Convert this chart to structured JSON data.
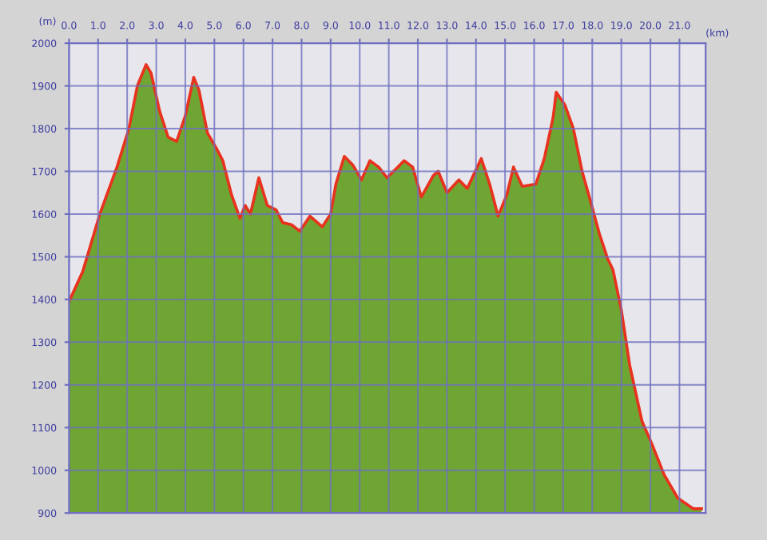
{
  "chart_data": {
    "type": "area",
    "xlabel": "(km)",
    "ylabel": "(m)",
    "x": [
      0,
      0.47,
      1.06,
      1.65,
      2.06,
      2.35,
      2.65,
      2.82,
      3.12,
      3.41,
      3.7,
      4.0,
      4.29,
      4.47,
      4.76,
      5.06,
      5.29,
      5.59,
      5.88,
      6.06,
      6.24,
      6.53,
      6.82,
      7.12,
      7.35,
      7.65,
      7.94,
      8.29,
      8.71,
      9.0,
      9.18,
      9.47,
      9.76,
      10.06,
      10.35,
      10.65,
      10.94,
      11.24,
      11.53,
      11.82,
      12.12,
      12.53,
      12.7,
      13.0,
      13.41,
      13.7,
      14.18,
      14.47,
      14.76,
      15.06,
      15.29,
      15.59,
      16.06,
      16.35,
      16.65,
      16.76,
      17.06,
      17.35,
      17.65,
      17.94,
      18.24,
      18.53,
      18.71,
      19.0,
      19.29,
      19.71,
      20.06,
      20.47,
      20.94,
      21.47,
      21.76
    ],
    "series": [
      {
        "color": "#6fa533",
        "values": [
          1395,
          1465,
          1600,
          1710,
          1800,
          1900,
          1950,
          1930,
          1840,
          1780,
          1770,
          1830,
          1920,
          1890,
          1790,
          1755,
          1725,
          1645,
          1590,
          1620,
          1600,
          1685,
          1620,
          1610,
          1580,
          1575,
          1560,
          1595,
          1570,
          1600,
          1670,
          1735,
          1715,
          1680,
          1725,
          1710,
          1685,
          1705,
          1725,
          1710,
          1640,
          1690,
          1700,
          1650,
          1680,
          1660,
          1730,
          1670,
          1595,
          1645,
          1710,
          1665,
          1670,
          1730,
          1825,
          1885,
          1855,
          1800,
          1700,
          1630,
          1555,
          1495,
          1470,
          1375,
          1245,
          1115,
          1060,
          990,
          935,
          910,
          910
        ]
      },
      {
        "type": "line",
        "color": "#e8321e",
        "values": [
          1395,
          1465,
          1600,
          1710,
          1800,
          1900,
          1950,
          1930,
          1840,
          1780,
          1770,
          1830,
          1920,
          1890,
          1790,
          1755,
          1725,
          1645,
          1590,
          1620,
          1600,
          1685,
          1620,
          1610,
          1580,
          1575,
          1560,
          1595,
          1570,
          1600,
          1670,
          1735,
          1715,
          1680,
          1725,
          1710,
          1685,
          1705,
          1725,
          1710,
          1640,
          1690,
          1700,
          1650,
          1680,
          1660,
          1730,
          1670,
          1595,
          1645,
          1710,
          1665,
          1670,
          1730,
          1825,
          1885,
          1855,
          1800,
          1700,
          1630,
          1555,
          1495,
          1470,
          1375,
          1245,
          1115,
          1060,
          990,
          935,
          910,
          910
        ]
      }
    ],
    "xlim": [
      0,
      21.9
    ],
    "xticks": [
      {
        "value": 0,
        "label": "0.0"
      },
      {
        "value": 1,
        "label": "1.0"
      },
      {
        "value": 2,
        "label": "2.0"
      },
      {
        "value": 3,
        "label": "3.0"
      },
      {
        "value": 4,
        "label": "4.0"
      },
      {
        "value": 5,
        "label": "5.0"
      },
      {
        "value": 6,
        "label": "6.0"
      },
      {
        "value": 7,
        "label": "7.0"
      },
      {
        "value": 8,
        "label": "8.0"
      },
      {
        "value": 9,
        "label": "9.0"
      },
      {
        "value": 10,
        "label": "10.0"
      },
      {
        "value": 11,
        "label": "11.0"
      },
      {
        "value": 12,
        "label": "12.0"
      },
      {
        "value": 13,
        "label": "13.0"
      },
      {
        "value": 14,
        "label": "14.0"
      },
      {
        "value": 15,
        "label": "15.0"
      },
      {
        "value": 16,
        "label": "16.0"
      },
      {
        "value": 17,
        "label": "17.0"
      },
      {
        "value": 18,
        "label": "18.0"
      },
      {
        "value": 19,
        "label": "19.0"
      },
      {
        "value": 20,
        "label": "20.0"
      },
      {
        "value": 21,
        "label": "21.0"
      }
    ],
    "ylim": [
      900,
      2000
    ],
    "yticks": [
      900,
      1000,
      1100,
      1200,
      1300,
      1400,
      1500,
      1600,
      1700,
      1800,
      1900,
      2000
    ],
    "grid": true,
    "legend": false
  }
}
